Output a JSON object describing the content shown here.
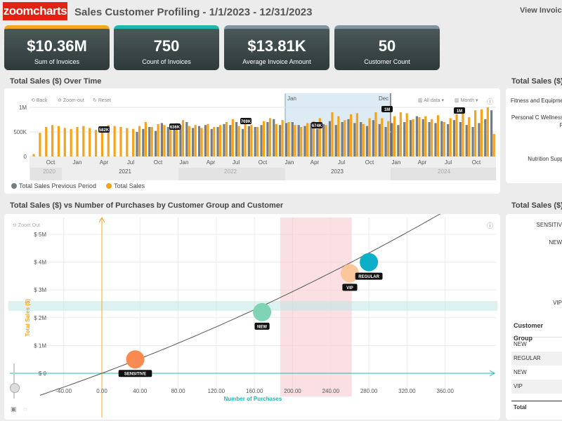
{
  "header": {
    "logo_text": "zoomcharts",
    "title": "Sales Customer Profiling - 1/1/2023 - 12/31/2023",
    "view_invoices": "View Invoice"
  },
  "kpis": [
    {
      "value": "$10.36M",
      "label": "Sum of Invoices",
      "accent": "#f5a623"
    },
    {
      "value": "750",
      "label": "Count of Invoices",
      "accent": "#1fb8b0"
    },
    {
      "value": "$13.81K",
      "label": "Average Invoice Amount",
      "accent": "#7f94a0"
    },
    {
      "value": "50",
      "label": "Customer Count",
      "accent": "#7f94a0"
    }
  ],
  "time_chart": {
    "title": "Total Sales ($) Over Time",
    "toolbar": {
      "back": "Back",
      "zoom_out": "Zoom-out",
      "reset": "Reset",
      "all_data": "All data",
      "month": "Month"
    },
    "selection": {
      "start": "Jan",
      "end": "Dec"
    },
    "legend": {
      "prev": "Total Sales Previous Period",
      "curr": "Total Sales"
    }
  },
  "scatter_chart": {
    "title": "Total Sales ($) vs Number of Purchases by Customer Group and Customer",
    "zoom_out": "Zoom Out"
  },
  "right_top": {
    "title": "Total Sales ($)",
    "items": [
      "Fitness and Equipme",
      "Personal C Wellness P",
      "Nutrition Supp"
    ]
  },
  "right_bottom": {
    "title": "Total Sales ($)",
    "items": [
      "SENSITIV",
      "NEW",
      "VIP"
    ],
    "table_header": "Customer Group",
    "rows": [
      "NEW",
      "REGULAR",
      "NEW",
      "VIP",
      ""
    ],
    "total": "Total"
  },
  "chart_data": [
    {
      "type": "bar",
      "title": "Total Sales ($) Over Time",
      "y_ticks": [
        "0",
        "500K",
        "1M"
      ],
      "ylim": [
        0,
        1100000
      ],
      "month_ticks": [
        "Oct",
        "Jan",
        "Apr",
        "Jul",
        "Oct",
        "Jan",
        "Apr",
        "Jul",
        "Oct",
        "Jan",
        "Apr",
        "Jul",
        "Oct",
        "Jan",
        "Apr",
        "Jul",
        "Oct"
      ],
      "year_ticks": [
        "2020",
        "2021",
        "2022",
        "2023",
        "2024"
      ],
      "series": [
        {
          "name": "Total Sales Previous Period",
          "color": "#777c80",
          "values": [
            0,
            0,
            0,
            0,
            0,
            0,
            0,
            0,
            0,
            0,
            0,
            0,
            0,
            0,
            0,
            0,
            0,
            500000,
            560000,
            600000,
            520000,
            680000,
            600000,
            560000,
            640000,
            700000,
            580000,
            620000,
            640000,
            560000,
            600000,
            660000,
            640000,
            700000,
            560000,
            620000,
            600000,
            640000,
            700000,
            760000,
            640000,
            680000,
            700000,
            640000,
            620000,
            680000,
            560000,
            660000,
            720000,
            640000,
            700000,
            760000,
            680000,
            700000,
            620000,
            740000,
            660000,
            600000,
            680000,
            640000,
            700000,
            740000,
            820000,
            760000,
            700000,
            680000,
            720000,
            660000,
            740000,
            700000,
            640000,
            600000,
            680000,
            760000,
            940000
          ]
        },
        {
          "name": "Total Sales",
          "color": "#f7a21b",
          "values": [
            50000,
            480000,
            600000,
            640000,
            620000,
            580000,
            560000,
            600000,
            620000,
            580000,
            540000,
            600000,
            640000,
            620000,
            600000,
            580000,
            560000,
            620000,
            700000,
            600000,
            660000,
            640000,
            600000,
            680000,
            740000,
            620000,
            640000,
            580000,
            660000,
            600000,
            640000,
            700000,
            760000,
            620000,
            680000,
            640000,
            600000,
            720000,
            780000,
            660000,
            740000,
            700000,
            640000,
            600000,
            680000,
            720000,
            780000,
            640000,
            900000,
            820000,
            740000,
            860000,
            880000,
            660000,
            780000,
            900000,
            780000,
            720000,
            820000,
            900000,
            880000,
            760000,
            800000,
            820000,
            760000,
            840000,
            700000,
            780000,
            860000,
            900000,
            800000,
            940000,
            960000,
            1000000,
            460000
          ]
        }
      ],
      "annotations": [
        "582K",
        "636K",
        "769K",
        "674K",
        "1M",
        "1M"
      ]
    },
    {
      "type": "scatter",
      "title": "Total Sales ($) vs Number of Purchases by Customer Group and Customer",
      "xlabel": "Number of Purchases",
      "ylabel": "Total Sales ($)",
      "x_ticks": [
        "-40.00",
        "0.00",
        "40.00",
        "80.00",
        "120.00",
        "160.00",
        "200.00",
        "240.00",
        "280.00",
        "320.00",
        "360.00"
      ],
      "y_ticks": [
        "$ 0",
        "$ 1M",
        "$ 2M",
        "$ 3M",
        "$ 4M",
        "$ 5M"
      ],
      "xlim": [
        -60,
        410
      ],
      "ylim": [
        -1000000,
        5500000
      ],
      "points": [
        {
          "name": "SENSITIVE",
          "x": 35,
          "y": 500000,
          "color": "#f98a52"
        },
        {
          "name": "NEW",
          "x": 168,
          "y": 2200000,
          "color": "#7fd4b6"
        },
        {
          "name": "VIP",
          "x": 260,
          "y": 3600000,
          "color": "#fbc69a"
        },
        {
          "name": "REGULAR",
          "x": 280,
          "y": 4000000,
          "color": "#0bb0c8"
        }
      ],
      "highlight_x_range": [
        187,
        262
      ],
      "highlight_y_range": [
        2250000,
        2600000
      ]
    }
  ]
}
